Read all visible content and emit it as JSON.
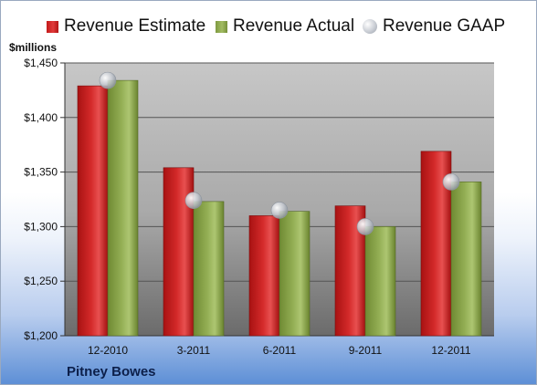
{
  "unit_label": "$millions",
  "company": "Pitney Bowes",
  "legend": {
    "estimate": "Revenue Estimate",
    "actual": "Revenue Actual",
    "gaap": "Revenue GAAP"
  },
  "colors": {
    "estimate": "#d42a2a",
    "actual": "#93ae54",
    "gaap": "#c9cdd4",
    "plot_top": "#c7c7c7",
    "plot_bottom": "#6b6b6b"
  },
  "chart_data": {
    "type": "bar",
    "title": "",
    "xlabel": "",
    "ylabel": "$millions",
    "categories": [
      "12-2010",
      "3-2011",
      "6-2011",
      "9-2011",
      "12-2011"
    ],
    "series": [
      {
        "name": "Revenue Estimate",
        "type": "bar",
        "values": [
          1429,
          1354,
          1310,
          1319,
          1369
        ]
      },
      {
        "name": "Revenue Actual",
        "type": "bar",
        "values": [
          1434,
          1323,
          1314,
          1300,
          1341
        ]
      },
      {
        "name": "Revenue GAAP",
        "type": "marker",
        "values": [
          1434,
          1324,
          1315,
          1300,
          1341
        ]
      }
    ],
    "ylim": [
      1200,
      1450
    ],
    "yticks": [
      1200,
      1250,
      1300,
      1350,
      1400,
      1450
    ],
    "ytick_labels": [
      "$1,200",
      "$1,250",
      "$1,300",
      "$1,350",
      "$1,400",
      "$1,450"
    ],
    "grid": true,
    "legend_position": "top"
  }
}
